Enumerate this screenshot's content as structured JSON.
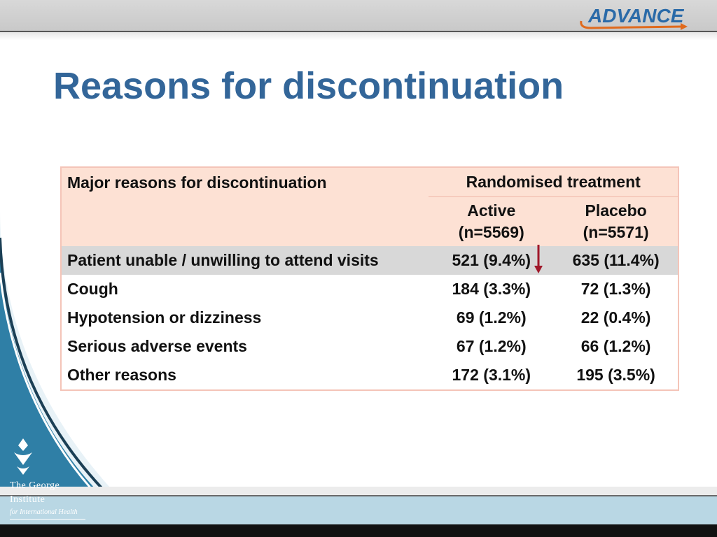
{
  "header": {
    "logo_text": "ADVANCE"
  },
  "slide": {
    "title": "Reasons for discontinuation"
  },
  "table": {
    "header_row1": {
      "col1": "Major reasons for discontinuation",
      "group": "Randomised treatment"
    },
    "header_row2": {
      "active_line1": "Active",
      "active_line2": "(n=5569)",
      "placebo_line1": "Placebo",
      "placebo_line2": "(n=5571)"
    },
    "rows": [
      {
        "reason": "Patient unable / unwilling to attend visits",
        "active": "521 (9.4%)",
        "placebo": "635 (11.4%)"
      },
      {
        "reason": "Cough",
        "active": "184 (3.3%)",
        "placebo": "72 (1.3%)"
      },
      {
        "reason": "Hypotension or dizziness",
        "active": "69 (1.2%)",
        "placebo": "22 (0.4%)"
      },
      {
        "reason": "Serious adverse events",
        "active": "67 (1.2%)",
        "placebo": "66 (1.2%)"
      },
      {
        "reason": "Other reasons",
        "active": "172 (3.1%)",
        "placebo": "195 (3.5%)"
      }
    ]
  },
  "footer": {
    "org_line1": "The George",
    "org_line2": "Institute",
    "org_line3": "for International Health"
  },
  "colors": {
    "title": "#336699",
    "header_bg": "#fde1d4",
    "highlight_row": "#d8d8d8",
    "arrow": "#a0182a",
    "sidebar": "#2f7fa6",
    "logo_blue": "#2a6aa8",
    "logo_orange": "#e06a1c"
  },
  "icons": [
    "advance-logo",
    "down-arrow-icon",
    "george-institute-emblem"
  ]
}
